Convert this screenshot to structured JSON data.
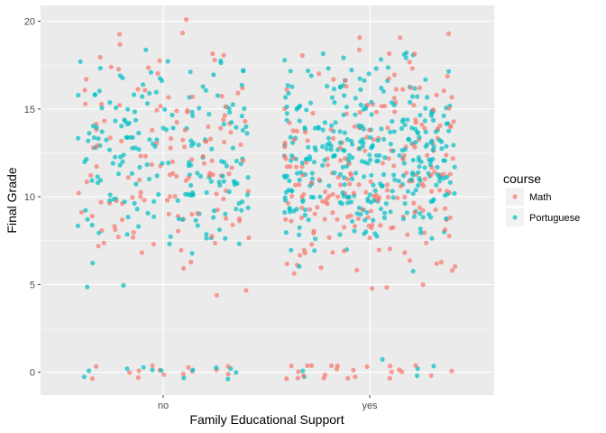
{
  "chart_data": {
    "type": "scatter",
    "jitter": true,
    "xlabel": "Family Educational Support",
    "ylabel": "Final Grade",
    "categories": [
      "no",
      "yes"
    ],
    "ylim": [
      -1.3,
      20.9
    ],
    "yticks": [
      0,
      5,
      10,
      15,
      20
    ],
    "grid": true,
    "legend": {
      "title": "course",
      "placement": "right"
    },
    "series": [
      {
        "name": "Math",
        "color": "#F8766D",
        "groups": [
          {
            "category": "no",
            "counts": {
              "0": 14,
              "4": 1,
              "5": 1,
              "6": 2,
              "7": 6,
              "8": 10,
              "9": 12,
              "10": 16,
              "11": 14,
              "12": 12,
              "13": 14,
              "14": 12,
              "15": 10,
              "16": 8,
              "17": 5,
              "18": 5,
              "19": 3,
              "20": 1
            }
          },
          {
            "category": "yes",
            "counts": {
              "0": 24,
              "5": 3,
              "6": 10,
              "7": 10,
              "8": 16,
              "9": 24,
              "10": 30,
              "11": 28,
              "12": 22,
              "13": 20,
              "14": 18,
              "15": 14,
              "16": 10,
              "17": 7,
              "18": 5,
              "19": 3
            }
          }
        ]
      },
      {
        "name": "Portuguese",
        "color": "#00BFC4",
        "groups": [
          {
            "category": "no",
            "counts": {
              "0": 12,
              "5": 2,
              "6": 1,
              "7": 3,
              "8": 12,
              "9": 16,
              "10": 20,
              "11": 24,
              "12": 22,
              "13": 26,
              "14": 22,
              "15": 18,
              "16": 14,
              "17": 10,
              "18": 5
            }
          },
          {
            "category": "yes",
            "counts": {
              "0": 5,
              "1": 1,
              "6": 2,
              "7": 3,
              "8": 14,
              "9": 30,
              "10": 40,
              "11": 50,
              "12": 48,
              "13": 52,
              "14": 40,
              "15": 30,
              "16": 20,
              "17": 14,
              "18": 8
            }
          }
        ]
      }
    ]
  }
}
